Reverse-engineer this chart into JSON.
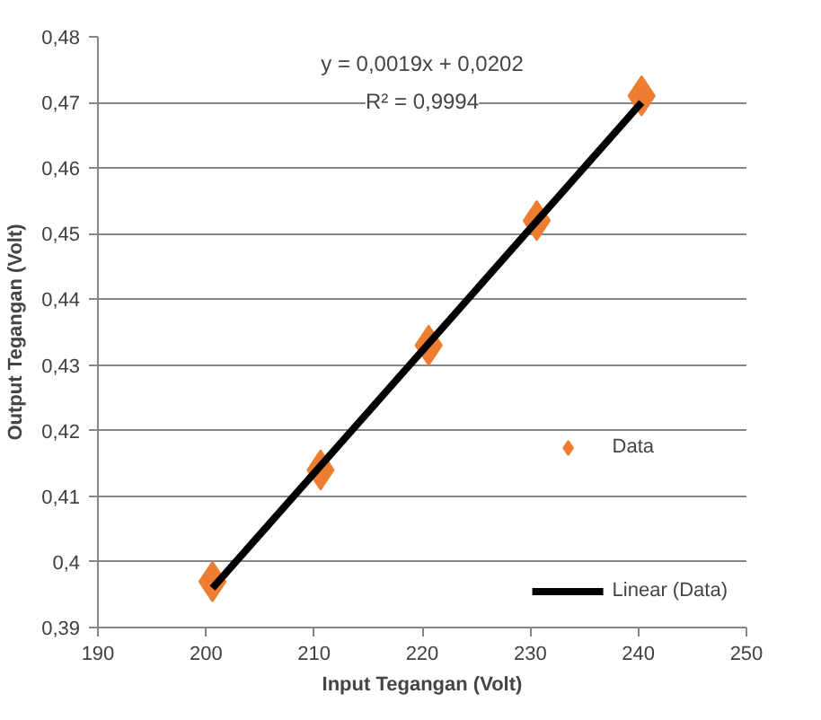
{
  "chart_data": {
    "type": "scatter",
    "xlabel": "Input Tegangan (Volt)",
    "ylabel": "Output Tegangan (Volt)",
    "series": [
      {
        "name": "Data",
        "color": "#ed7d31",
        "marker": "diamond",
        "x": [
          200.6,
          210.6,
          220.6,
          230.6,
          240.3
        ],
        "values": [
          0.397,
          0.414,
          0.433,
          0.452,
          0.471
        ]
      },
      {
        "name": "Linear (Data)",
        "type": "line",
        "color": "#000000",
        "line_style": "solid",
        "x": [
          200.6,
          240.3
        ],
        "values": [
          0.396,
          0.47
        ]
      }
    ],
    "annotations": [
      "y = 0,0019x + 0,0202",
      "R² = 0,9994"
    ],
    "xlim": [
      190,
      250
    ],
    "xticks": [
      190,
      200,
      210,
      220,
      230,
      240,
      250
    ],
    "ylim": [
      0.39,
      0.48
    ],
    "yticks": [
      {
        "value": 0.39,
        "label": "0,39"
      },
      {
        "value": 0.4,
        "label": "0,4"
      },
      {
        "value": 0.41,
        "label": "0,41"
      },
      {
        "value": 0.42,
        "label": "0,42"
      },
      {
        "value": 0.43,
        "label": "0,43"
      },
      {
        "value": 0.44,
        "label": "0,44"
      },
      {
        "value": 0.45,
        "label": "0,45"
      },
      {
        "value": 0.46,
        "label": "0,46"
      },
      {
        "value": 0.47,
        "label": "0,47"
      },
      {
        "value": 0.48,
        "label": "0,48"
      }
    ],
    "grid": "y",
    "legend": "bottom right"
  }
}
